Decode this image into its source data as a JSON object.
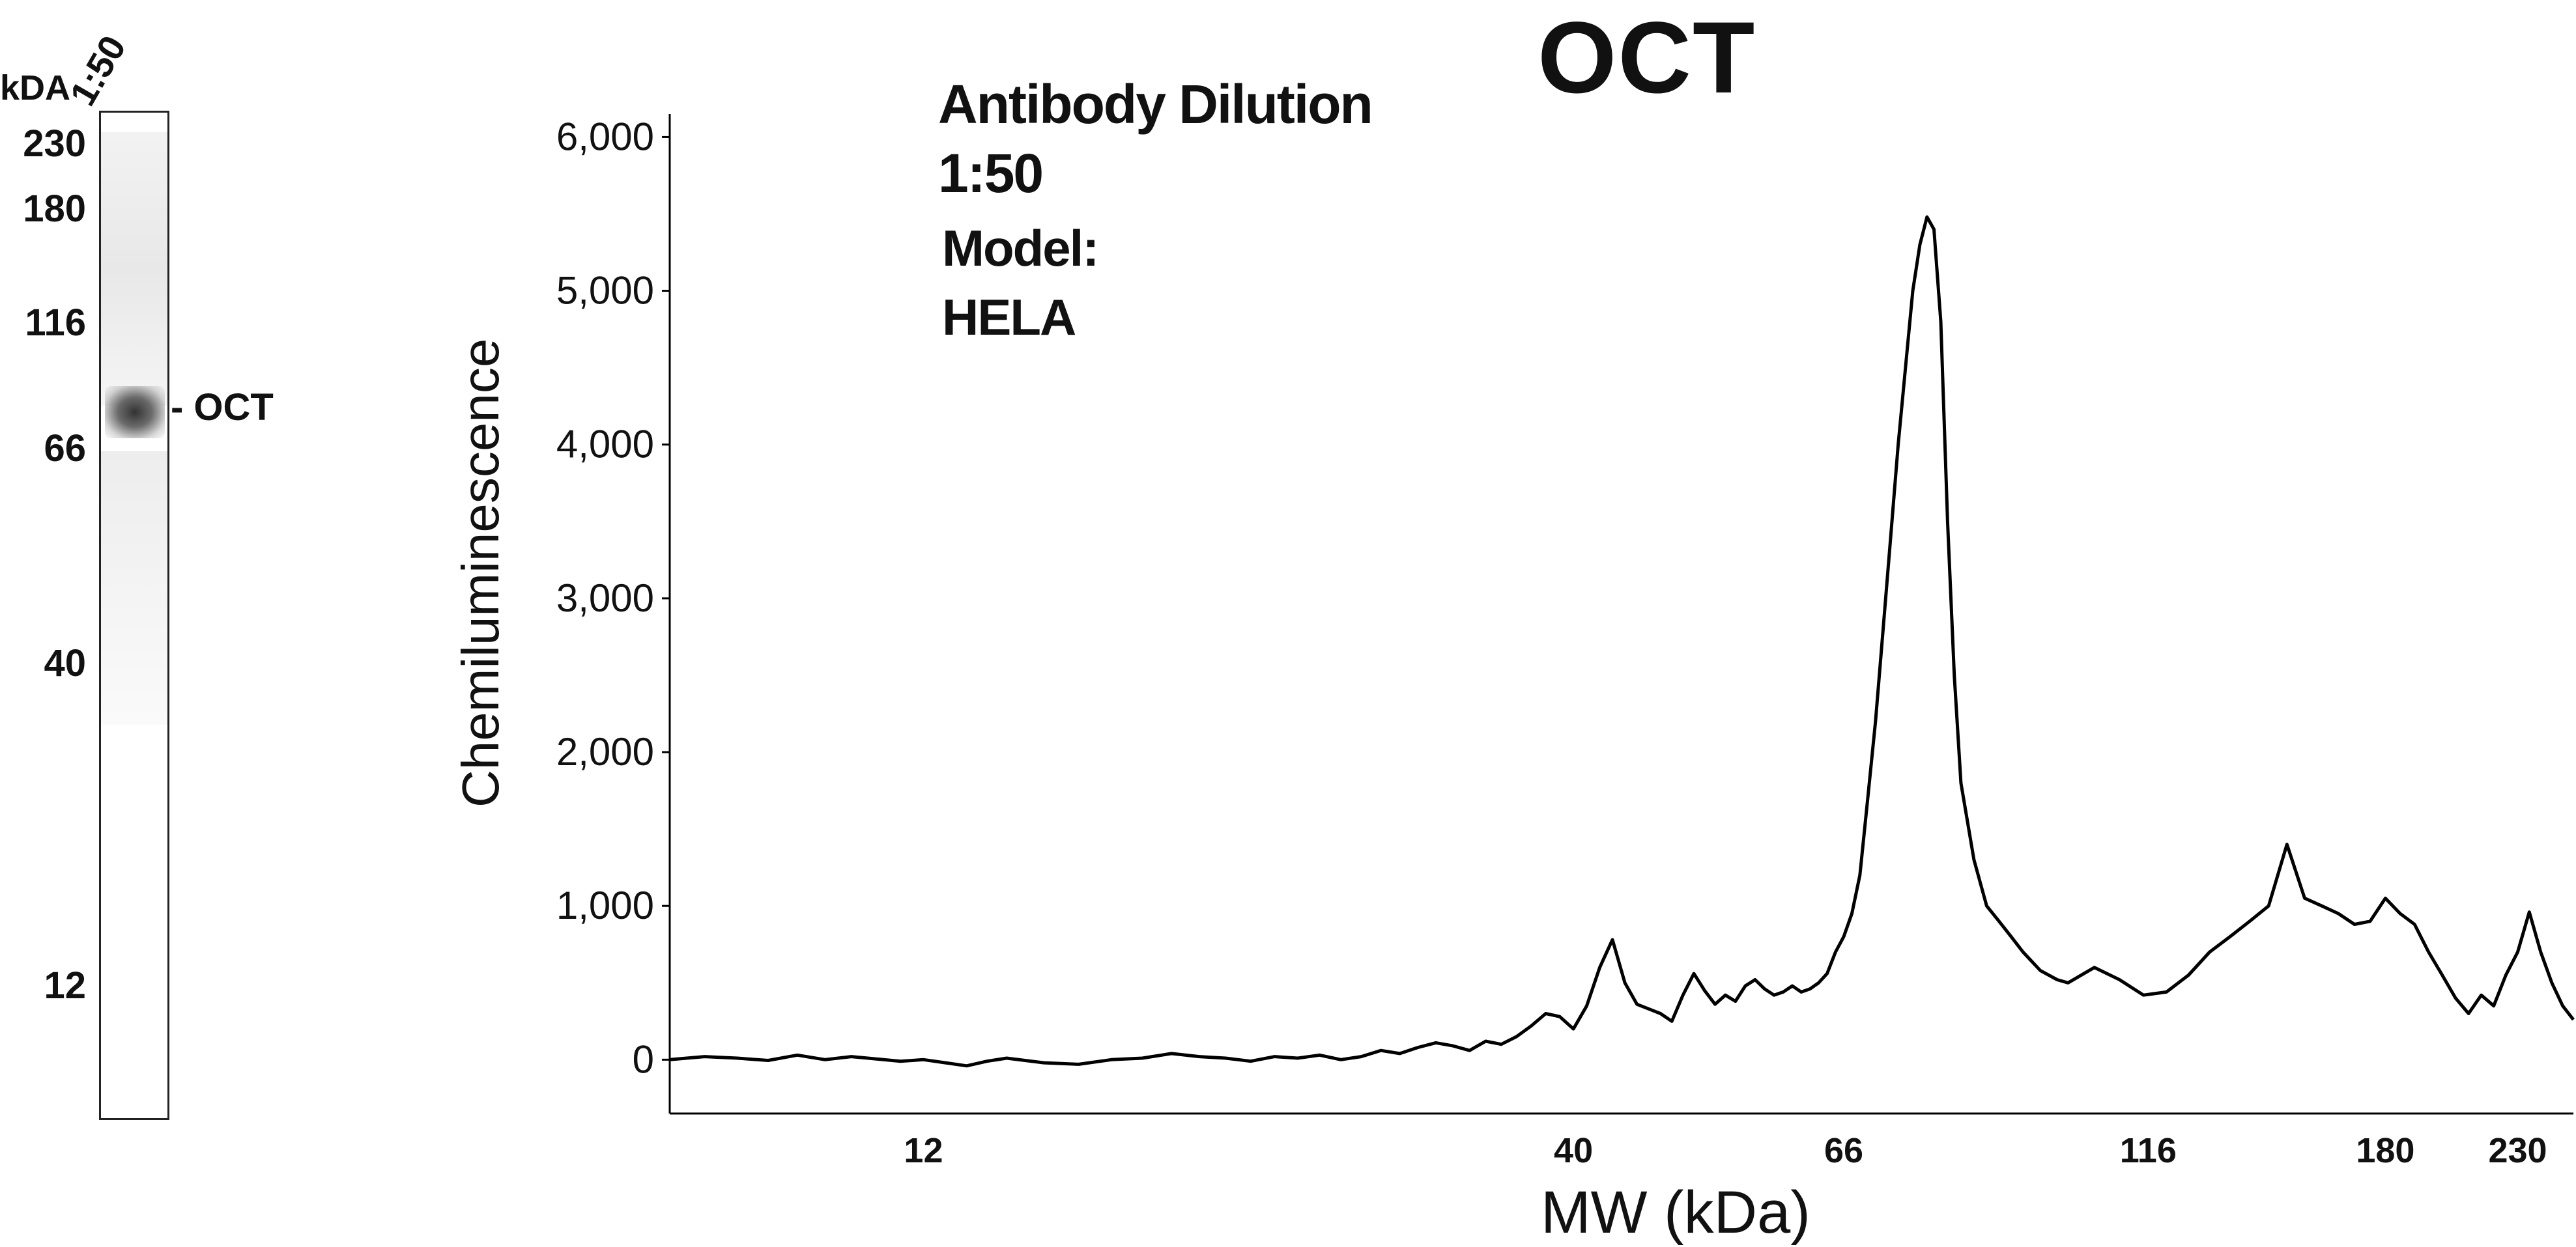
{
  "blot": {
    "kda_header": "kDA",
    "lane_label": "1:50",
    "mw_markers": [
      "230",
      "180",
      "116",
      "66",
      "40",
      "12"
    ],
    "band_label": "- OCT"
  },
  "annotations": {
    "dilution_title": "Antibody Dilution",
    "dilution_value": "1:50",
    "model_title": "Model:",
    "model_value": "HELA"
  },
  "chart_data": {
    "type": "line",
    "title": "OCT",
    "xlabel": "MW (kDa)",
    "ylabel": "Chemiluminescence",
    "xscale": "log",
    "xlim": [
      7.5,
      255
    ],
    "ylim": [
      -350,
      6150
    ],
    "x_ticks": [
      12,
      40,
      66,
      116,
      180,
      230
    ],
    "x_tick_labels": [
      "12",
      "40",
      "66",
      "116",
      "180",
      "230"
    ],
    "y_ticks": [
      0,
      1000,
      2000,
      3000,
      4000,
      5000,
      6000
    ],
    "y_tick_labels": [
      "0",
      "1,000",
      "2,000",
      "3,000",
      "4,000",
      "5,000",
      "6,000"
    ],
    "grid": false,
    "line_color": "#000000",
    "series": [
      {
        "x": [
          7.5,
          8.0,
          8.5,
          9.0,
          9.5,
          10.0,
          10.5,
          11.0,
          11.5,
          12.0,
          12.5,
          13.0,
          13.5,
          14.0,
          15.0,
          16.0,
          17.0,
          18.0,
          19.0,
          20.0,
          21.0,
          22.0,
          23.0,
          24.0,
          25.0,
          26.0,
          27.0,
          28.0,
          29.0,
          30.0,
          31.0,
          32.0,
          33.0,
          34.0,
          35.0,
          36.0,
          37.0,
          38.0,
          39.0,
          40.0,
          41.0,
          42.0,
          43.0,
          44.0,
          45.0,
          46.0,
          47.0,
          48.0,
          49.0,
          50.0,
          51.0,
          52.0,
          53.0,
          54.0,
          55.0,
          56.0,
          57.0,
          58.0,
          59.0,
          60.0,
          61.0,
          62.0,
          63.0,
          64.0,
          65.0,
          66.0,
          67.0,
          68.0,
          69.0,
          70.0,
          71.0,
          72.0,
          73.0,
          74.0,
          75.0,
          76.0,
          77.0,
          78.0,
          79.0,
          80.0,
          81.0,
          82.0,
          84.0,
          86.0,
          88.0,
          90.0,
          92.0,
          95.0,
          98.0,
          100.0,
          105.0,
          110.0,
          115.0,
          120.0,
          125.0,
          130.0,
          135.0,
          140.0,
          145.0,
          150.0,
          155.0,
          160.0,
          165.0,
          170.0,
          175.0,
          180.0,
          185.0,
          190.0,
          195.0,
          200.0,
          205.0,
          210.0,
          215.0,
          220.0,
          225.0,
          230.0,
          235.0,
          240.0,
          245.0,
          250.0,
          255.0
        ],
        "y": [
          0,
          20,
          10,
          -5,
          30,
          0,
          20,
          5,
          -10,
          0,
          -20,
          -40,
          -10,
          10,
          -20,
          -30,
          0,
          10,
          40,
          20,
          10,
          -10,
          20,
          10,
          30,
          0,
          20,
          60,
          40,
          80,
          110,
          90,
          60,
          120,
          100,
          150,
          220,
          300,
          280,
          200,
          350,
          600,
          780,
          500,
          360,
          330,
          300,
          250,
          420,
          560,
          450,
          360,
          420,
          380,
          480,
          520,
          460,
          420,
          440,
          480,
          440,
          460,
          500,
          560,
          700,
          800,
          950,
          1200,
          1700,
          2200,
          2800,
          3400,
          4000,
          4500,
          5000,
          5300,
          5480,
          5400,
          4800,
          3500,
          2500,
          1800,
          1300,
          1000,
          900,
          800,
          700,
          580,
          520,
          500,
          600,
          520,
          420,
          440,
          550,
          700,
          800,
          900,
          1000,
          1400,
          1050,
          1000,
          950,
          880,
          900,
          1050,
          950,
          880,
          700,
          550,
          400,
          300,
          420,
          350,
          550,
          700,
          960,
          700,
          500,
          350,
          260
        ]
      }
    ]
  }
}
